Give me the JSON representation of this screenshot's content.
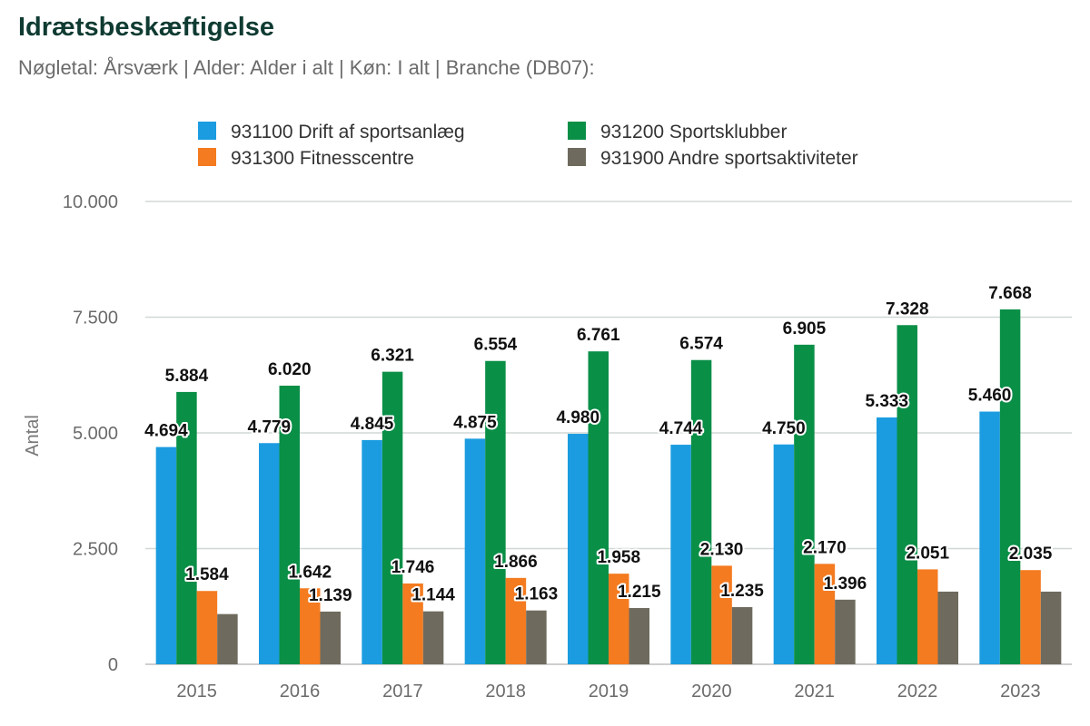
{
  "header": {
    "title": "Idrætsbeskæftigelse",
    "subtitle": "Nøgletal: Årsværk | Alder: Alder i alt | Køn: I alt | Branche (DB07):"
  },
  "chart_data": {
    "type": "bar",
    "title": "Idrætsbeskæftigelse",
    "xlabel": "",
    "ylabel": "Antal",
    "ylim": [
      0,
      10000
    ],
    "yticks": [
      0,
      2500,
      5000,
      7500,
      10000
    ],
    "ytick_labels": [
      "0",
      "2.500",
      "5.000",
      "7.500",
      "10.000"
    ],
    "grid": true,
    "legend_position": "top",
    "categories": [
      "2015",
      "2016",
      "2017",
      "2018",
      "2019",
      "2020",
      "2021",
      "2022",
      "2023"
    ],
    "series": [
      {
        "name": "931100 Drift af sportsanlæg",
        "color": "#1b9ce0",
        "values": [
          4694,
          4779,
          4845,
          4875,
          4980,
          4744,
          4750,
          5333,
          5460
        ],
        "labels": [
          "4.694",
          "4.779",
          "4.845",
          "4.875",
          "4.980",
          "4.744",
          "4.750",
          "5.333",
          "5.460"
        ]
      },
      {
        "name": "931200 Sportsklubber",
        "color": "#0a8f47",
        "values": [
          5884,
          6020,
          6321,
          6554,
          6761,
          6574,
          6905,
          7328,
          7668
        ],
        "labels": [
          "5.884",
          "6.020",
          "6.321",
          "6.554",
          "6.761",
          "6.574",
          "6.905",
          "7.328",
          "7.668"
        ]
      },
      {
        "name": "931300 Fitnesscentre",
        "color": "#f47b20",
        "values": [
          1584,
          1642,
          1746,
          1866,
          1958,
          2130,
          2170,
          2051,
          2035
        ],
        "labels": [
          "1.584",
          "1.642",
          "1.746",
          "1.866",
          "1.958",
          "2.130",
          "2.170",
          "2.051",
          "2.035"
        ]
      },
      {
        "name": "931900 Andre sportsaktiviteter",
        "color": "#6e6b5e",
        "values": [
          1085,
          1139,
          1144,
          1163,
          1215,
          1235,
          1396,
          1570,
          1570
        ],
        "labels": [
          "",
          "1.139",
          "1.144",
          "1.163",
          "1.215",
          "1.235",
          "1.396",
          "",
          ""
        ]
      }
    ]
  }
}
